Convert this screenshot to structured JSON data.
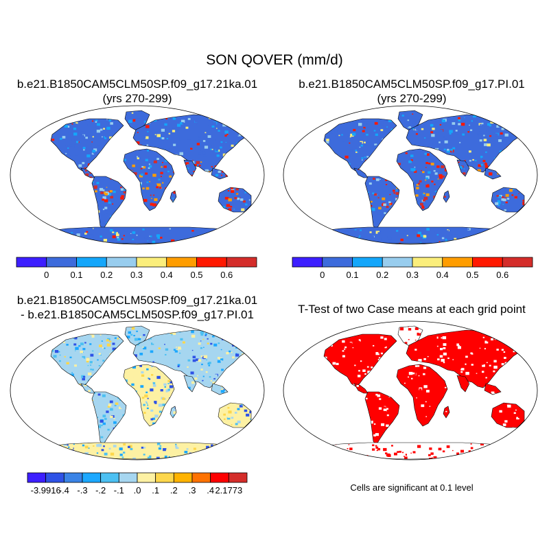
{
  "title": "SON QOVER (mm/d)",
  "colors": {
    "abs": [
      "#3d1fff",
      "#3d6bdc",
      "#14a6fa",
      "#98cdee",
      "#fbee7b",
      "#ff9d00",
      "#ff1900",
      "#d42d2a"
    ],
    "diff": [
      "#3d1fff",
      "#2e52e6",
      "#3a83e6",
      "#1ca8ff",
      "#4cc0f2",
      "#a6d6f0",
      "#fdf1a3",
      "#fdd74c",
      "#ffb300",
      "#ff7200",
      "#ff0000",
      "#d42d2a"
    ],
    "sig": "#ff0000",
    "ocean": "#ffffff",
    "coast": "#000000"
  },
  "panels": [
    {
      "title_lines": [
        "b.e21.B1850CAM5CLM50SP.f09_g17.21ka.01",
        "(yrs 270-299)"
      ],
      "colorbar": {
        "labels": [
          "0",
          "0.1",
          "0.2",
          "0.3",
          "0.4",
          "0.5",
          "0.6"
        ]
      }
    },
    {
      "title_lines": [
        "b.e21.B1850CAM5CLM50SP.f09_g17.PI.01",
        "(yrs 270-299)"
      ],
      "colorbar": {
        "labels": [
          "0",
          "0.1",
          "0.2",
          "0.3",
          "0.4",
          "0.5",
          "0.6"
        ]
      }
    },
    {
      "title_lines": [
        "b.e21.B1850CAM5CLM50SP.f09_g17.21ka.01",
        "- b.e21.B1850CAM5CLM50SP.f09_g17.PI.01"
      ],
      "colorbar": {
        "labels": [
          "-3.9916",
          "-.4",
          "-.3",
          "-.2",
          "-.1",
          ".0",
          ".1",
          ".2",
          ".3",
          ".4",
          "2.1773"
        ]
      }
    },
    {
      "title_lines": [
        "T-Test of two Case means at each grid point"
      ],
      "note": "Cells are significant at 0.1 level"
    }
  ]
}
